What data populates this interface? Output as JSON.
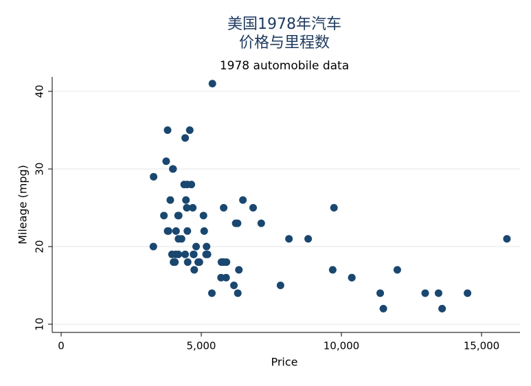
{
  "chart_data": {
    "type": "scatter",
    "title": [
      "美国1978年汽车",
      "价格与里程数"
    ],
    "subtitle": "1978 automobile data",
    "x_label": "Price",
    "y_label": "Mileage (mpg)",
    "color": "#1a476f",
    "grid": true,
    "xlim": [
      -319,
      16373
    ],
    "ylim": [
      8.94,
      41.86
    ],
    "xticks": [
      0,
      {
        "value": 5000,
        "label": "5,000"
      },
      {
        "value": 10000,
        "label": "10,000"
      },
      {
        "value": 15000,
        "label": "15,000"
      }
    ],
    "yticks": [
      10,
      20,
      30,
      40
    ],
    "x": [
      4099,
      4749,
      3799,
      4816,
      7827,
      5788,
      4453,
      5189,
      10372,
      4082,
      11385,
      14500,
      15906,
      3299,
      5705,
      4504,
      5104,
      3667,
      3955,
      3984,
      4010,
      5886,
      6342,
      4389,
      4187,
      11497,
      13594,
      13466,
      3829,
      5379,
      6165,
      4516,
      6303,
      3291,
      8814,
      5172,
      4733,
      4890,
      4181,
      4195,
      10371,
      4647,
      4425,
      4482,
      6486,
      4060,
      5798,
      4934,
      5222,
      4723,
      4424,
      4172,
      9690,
      6295,
      9735,
      6229,
      4589,
      5079,
      8129,
      4296,
      5799,
      4499,
      3995,
      12990,
      3895,
      3798,
      5899,
      3748,
      5719,
      7140,
      5397,
      4697,
      6850,
      11995
    ],
    "values": [
      22,
      17,
      22,
      20,
      15,
      18,
      26,
      20,
      16,
      19,
      14,
      14,
      21,
      29,
      16,
      22,
      22,
      24,
      19,
      30,
      18,
      16,
      17,
      28,
      21,
      12,
      12,
      14,
      22,
      14,
      15,
      18,
      14,
      20,
      21,
      19,
      19,
      18,
      19,
      24,
      16,
      28,
      34,
      25,
      26,
      18,
      18,
      18,
      19,
      19,
      19,
      24,
      17,
      23,
      25,
      23,
      35,
      24,
      21,
      21,
      25,
      28,
      30,
      14,
      26,
      35,
      18,
      31,
      18,
      23,
      41,
      25,
      25,
      17
    ]
  }
}
